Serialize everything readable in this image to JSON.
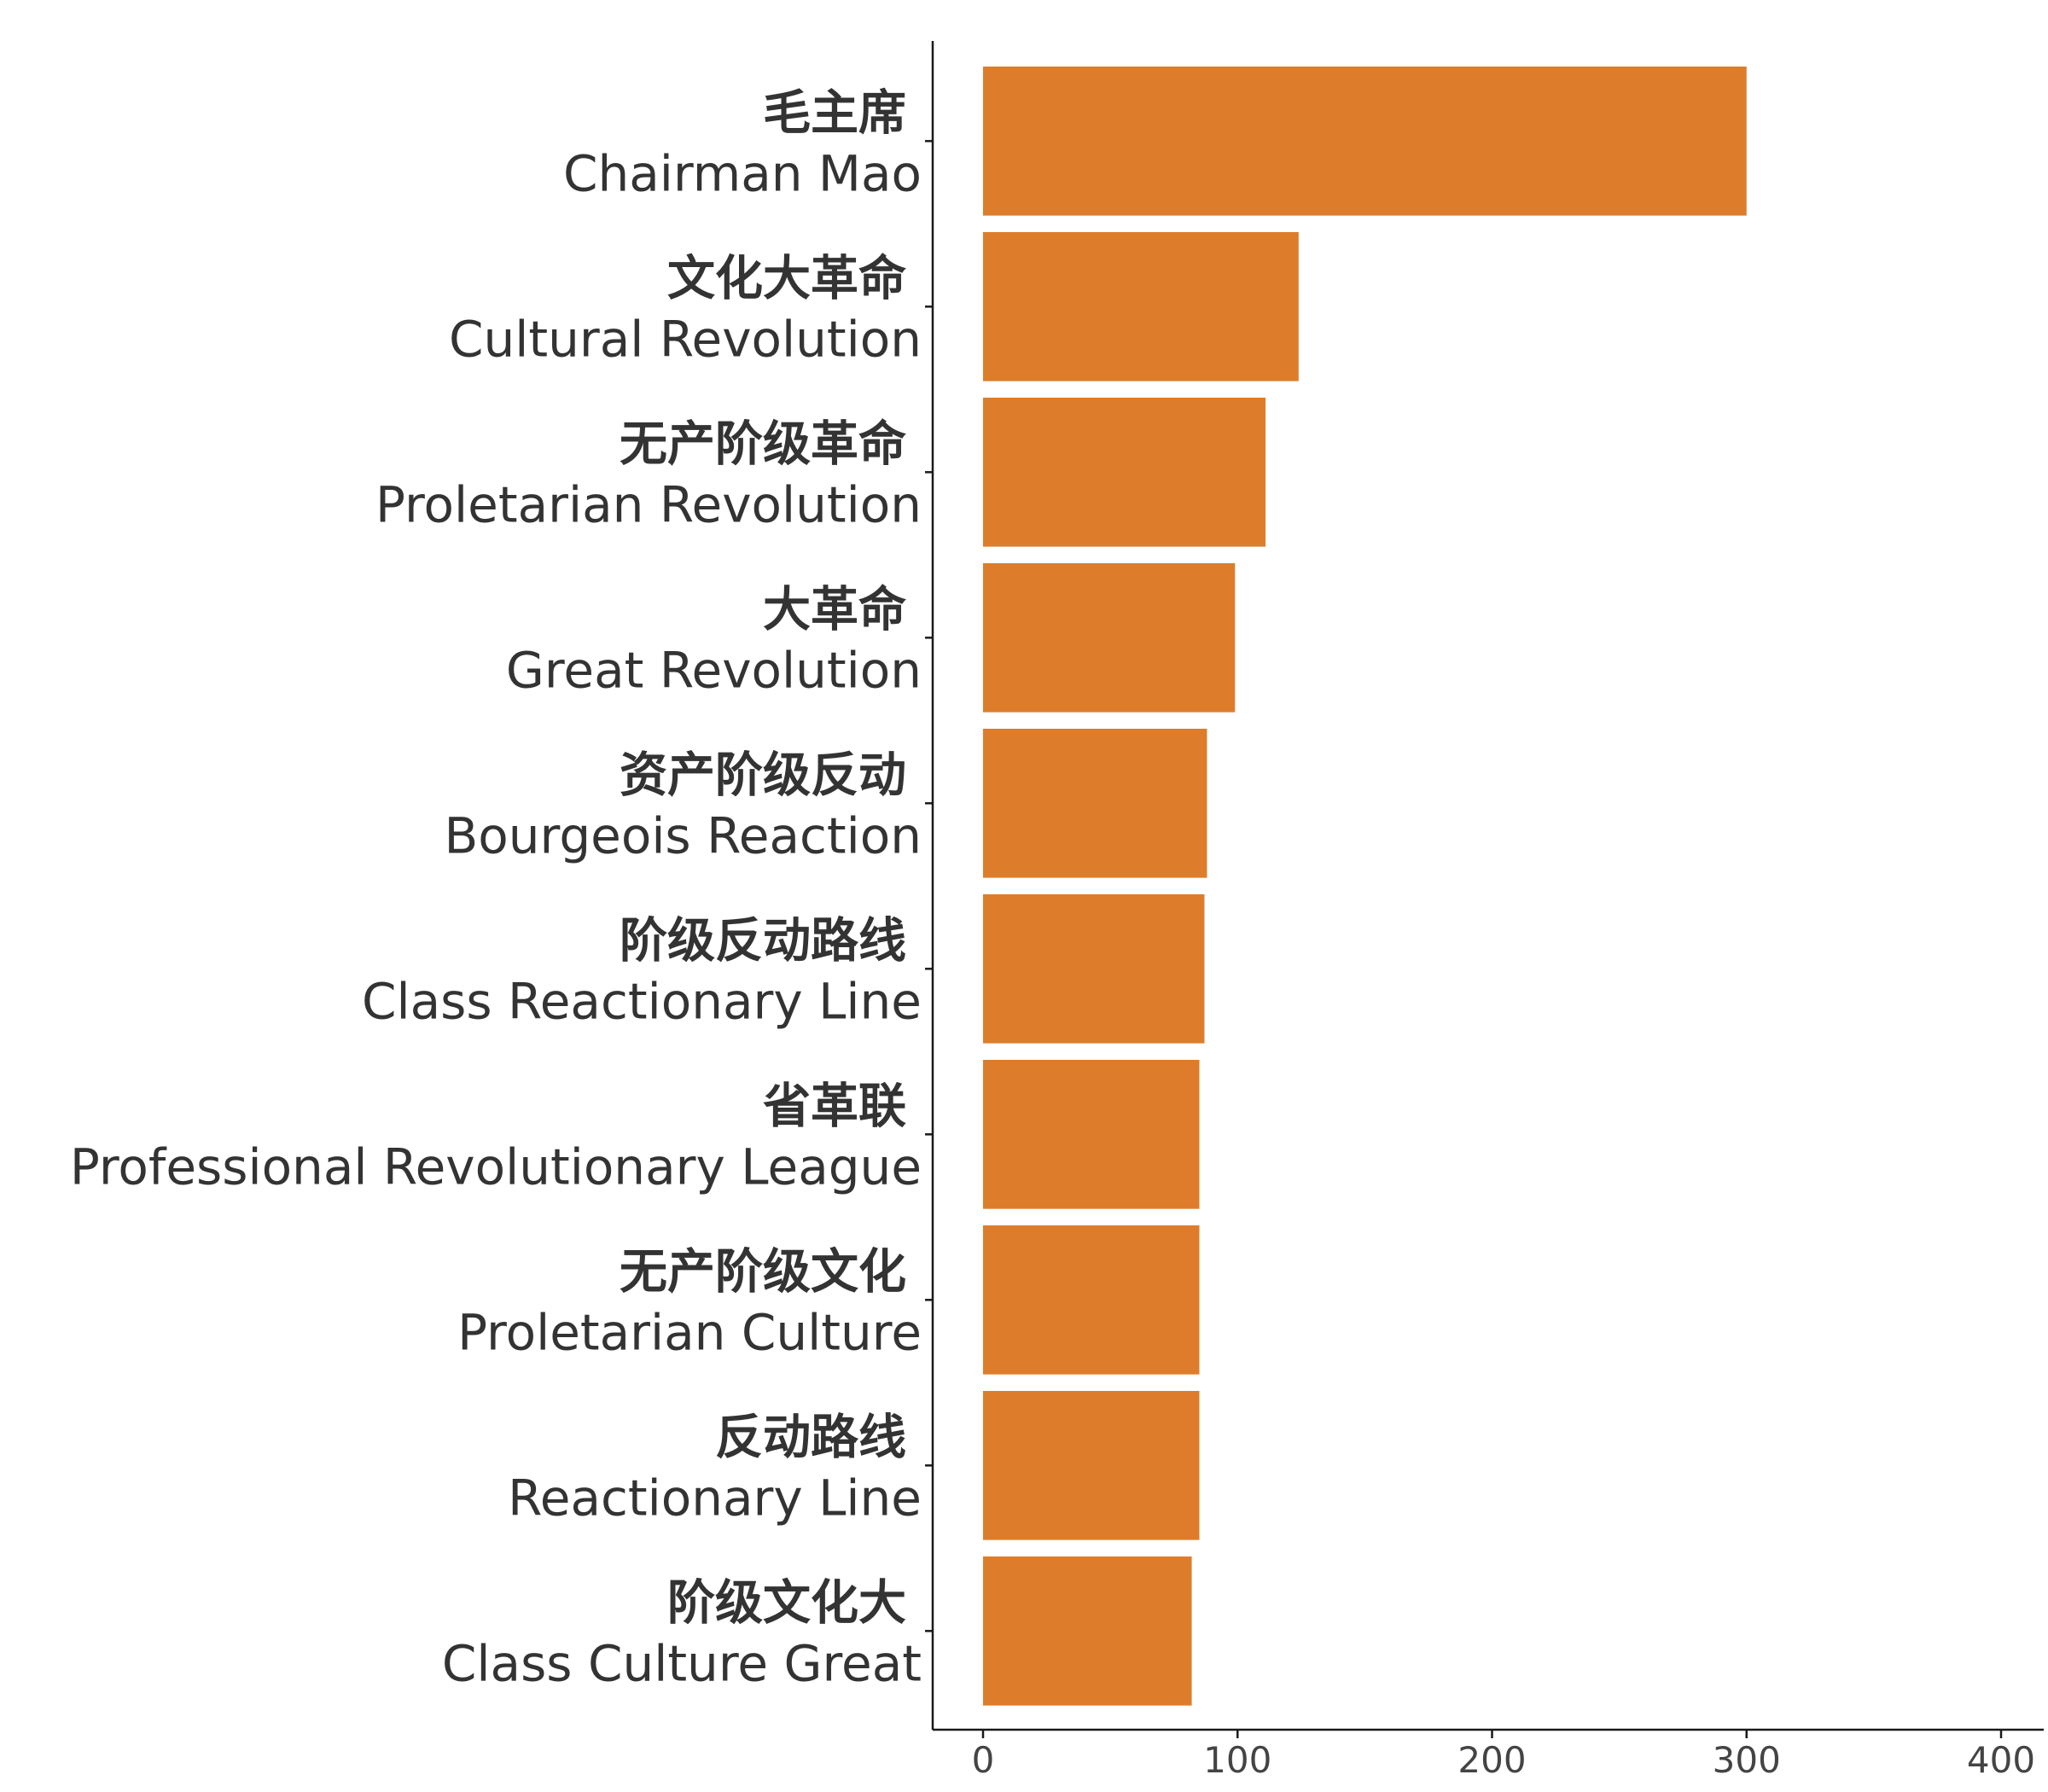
{
  "chart_data": {
    "type": "bar",
    "orientation": "horizontal",
    "title": "",
    "xlabel": "",
    "ylabel": "",
    "xlim": [
      0,
      400
    ],
    "x_ticks": [
      0,
      100,
      200,
      300,
      400
    ],
    "grid": false,
    "legend": "none",
    "bar_color": "#DD7D2B",
    "categories": [
      {
        "zh": "毛主席",
        "en": "Chairman Mao"
      },
      {
        "zh": "文化大革命",
        "en": "Cultural Revolution"
      },
      {
        "zh": "无产阶级革命",
        "en": "Proletarian Revolution"
      },
      {
        "zh": "大革命",
        "en": "Great Revolution"
      },
      {
        "zh": "资产阶级反动",
        "en": "Bourgeois Reaction"
      },
      {
        "zh": "阶级反动路线",
        "en": "Class Reactionary Line"
      },
      {
        "zh": "省革联",
        "en": "Professional Revolutionary League"
      },
      {
        "zh": "无产阶级文化",
        "en": "Proletarian Culture"
      },
      {
        "zh": "反动路线",
        "en": "Reactionary Line"
      },
      {
        "zh": "阶级文化大",
        "en": "Class Culture Great"
      }
    ],
    "values": [
      300,
      124,
      111,
      99,
      88,
      87,
      85,
      85,
      85,
      82
    ]
  }
}
